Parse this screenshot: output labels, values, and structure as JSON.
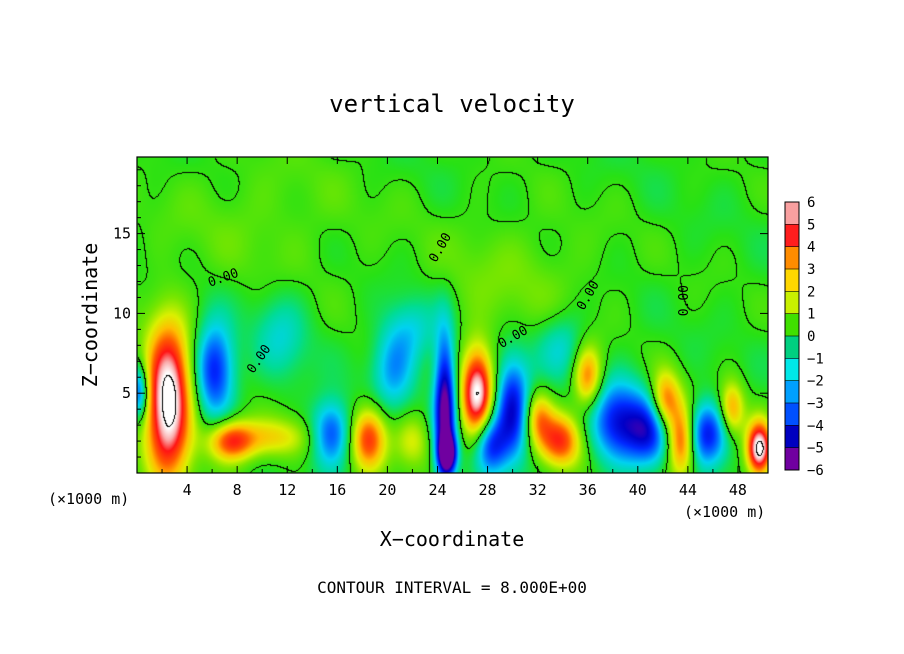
{
  "chart_data": {
    "type": "heatmap",
    "title": "vertical velocity",
    "xlabel": "X−coordinate",
    "ylabel": "Z−coordinate",
    "x_units_left": "(×1000 m)",
    "x_units_right": "(×1000 m)",
    "footer": "CONTOUR INTERVAL = 8.000E+00",
    "contour_label": "0.00",
    "xlim": [
      0,
      50.4
    ],
    "ylim": [
      0,
      19.8
    ],
    "x_ticks": [
      4,
      8,
      12,
      16,
      20,
      24,
      28,
      32,
      36,
      40,
      44,
      48
    ],
    "y_ticks": [
      5,
      10,
      15
    ],
    "colorbar": {
      "range": [
        -6,
        6
      ],
      "ticks": [
        6,
        5,
        4,
        3,
        2,
        1,
        0,
        -1,
        -2,
        -3,
        -4,
        -5,
        -6
      ],
      "colors": [
        "#f9a0a0",
        "#ff1e1e",
        "#ff8c00",
        "#ffd700",
        "#c8f000",
        "#40e000",
        "#00d080",
        "#00e8e8",
        "#00a0ff",
        "#0050ff",
        "#0000c0",
        "#7000a0"
      ]
    },
    "features": [
      {
        "x": 2.5,
        "z": 4.5,
        "w": 7.5,
        "sx": 1.3,
        "sz": 3.3
      },
      {
        "x": 6.2,
        "z": 6.5,
        "w": -4.5,
        "sx": 1.1,
        "sz": 2.0
      },
      {
        "x": 7.5,
        "z": 2.0,
        "w": 4.5,
        "sx": 1.3,
        "sz": 0.9
      },
      {
        "x": 11.0,
        "z": 2.2,
        "w": 2.5,
        "sx": 2.2,
        "sz": 0.9
      },
      {
        "x": 15.5,
        "z": 2.5,
        "w": -4.0,
        "sx": 1.1,
        "sz": 1.4
      },
      {
        "x": 18.5,
        "z": 2.2,
        "w": 4.5,
        "sx": 1.0,
        "sz": 1.4
      },
      {
        "x": 20.5,
        "z": 6.5,
        "w": -2.5,
        "sx": 1.2,
        "sz": 1.8
      },
      {
        "x": 22.0,
        "z": 2.0,
        "w": 2.0,
        "sx": 1.0,
        "sz": 1.2
      },
      {
        "x": 24.6,
        "z": 4.0,
        "w": -6.5,
        "sx": 0.6,
        "sz": 3.2
      },
      {
        "x": 24.8,
        "z": 1.2,
        "w": -6.0,
        "sx": 0.5,
        "sz": 0.8
      },
      {
        "x": 27.2,
        "z": 5.0,
        "w": 6.5,
        "sx": 0.9,
        "sz": 2.0
      },
      {
        "x": 28.2,
        "z": 1.8,
        "w": -4.0,
        "sx": 0.9,
        "sz": 1.3
      },
      {
        "x": 30.0,
        "z": 4.0,
        "w": -5.0,
        "sx": 1.0,
        "sz": 2.2
      },
      {
        "x": 32.0,
        "z": 3.5,
        "w": 3.0,
        "sx": 0.8,
        "sz": 1.2
      },
      {
        "x": 33.8,
        "z": 2.0,
        "w": 4.5,
        "sx": 1.2,
        "sz": 1.2
      },
      {
        "x": 36.0,
        "z": 6.0,
        "w": 4.0,
        "sx": 0.8,
        "sz": 1.4
      },
      {
        "x": 38.5,
        "z": 3.2,
        "w": -4.5,
        "sx": 1.6,
        "sz": 1.8
      },
      {
        "x": 41.0,
        "z": 2.5,
        "w": -3.5,
        "sx": 1.2,
        "sz": 1.5
      },
      {
        "x": 42.2,
        "z": 4.5,
        "w": 4.0,
        "sx": 0.8,
        "sz": 1.3
      },
      {
        "x": 43.5,
        "z": 2.0,
        "w": 5.0,
        "sx": 0.8,
        "sz": 1.6
      },
      {
        "x": 45.5,
        "z": 2.5,
        "w": -4.5,
        "sx": 1.2,
        "sz": 1.4
      },
      {
        "x": 47.5,
        "z": 4.0,
        "w": 3.5,
        "sx": 0.7,
        "sz": 1.2
      },
      {
        "x": 49.7,
        "z": 1.5,
        "w": 7.0,
        "sx": 0.7,
        "sz": 1.2
      },
      {
        "x": 0.2,
        "z": 5.0,
        "w": -4.0,
        "sx": 0.5,
        "sz": 1.2
      },
      {
        "x": 22.0,
        "z": 9.0,
        "w": -1.8,
        "sx": 1.5,
        "sz": 1.5
      },
      {
        "x": 34.0,
        "z": 8.0,
        "w": -1.8,
        "sx": 1.5,
        "sz": 1.5
      },
      {
        "x": 11.5,
        "z": 8.5,
        "w": -1.5,
        "sx": 1.5,
        "sz": 2.0
      },
      {
        "x": 30.0,
        "z": 12.0,
        "w": 0.8,
        "sx": 5.0,
        "sz": 3.0
      },
      {
        "x": 10.0,
        "z": 16.0,
        "w": 0.6,
        "sx": 6.0,
        "sz": 3.0
      }
    ]
  }
}
